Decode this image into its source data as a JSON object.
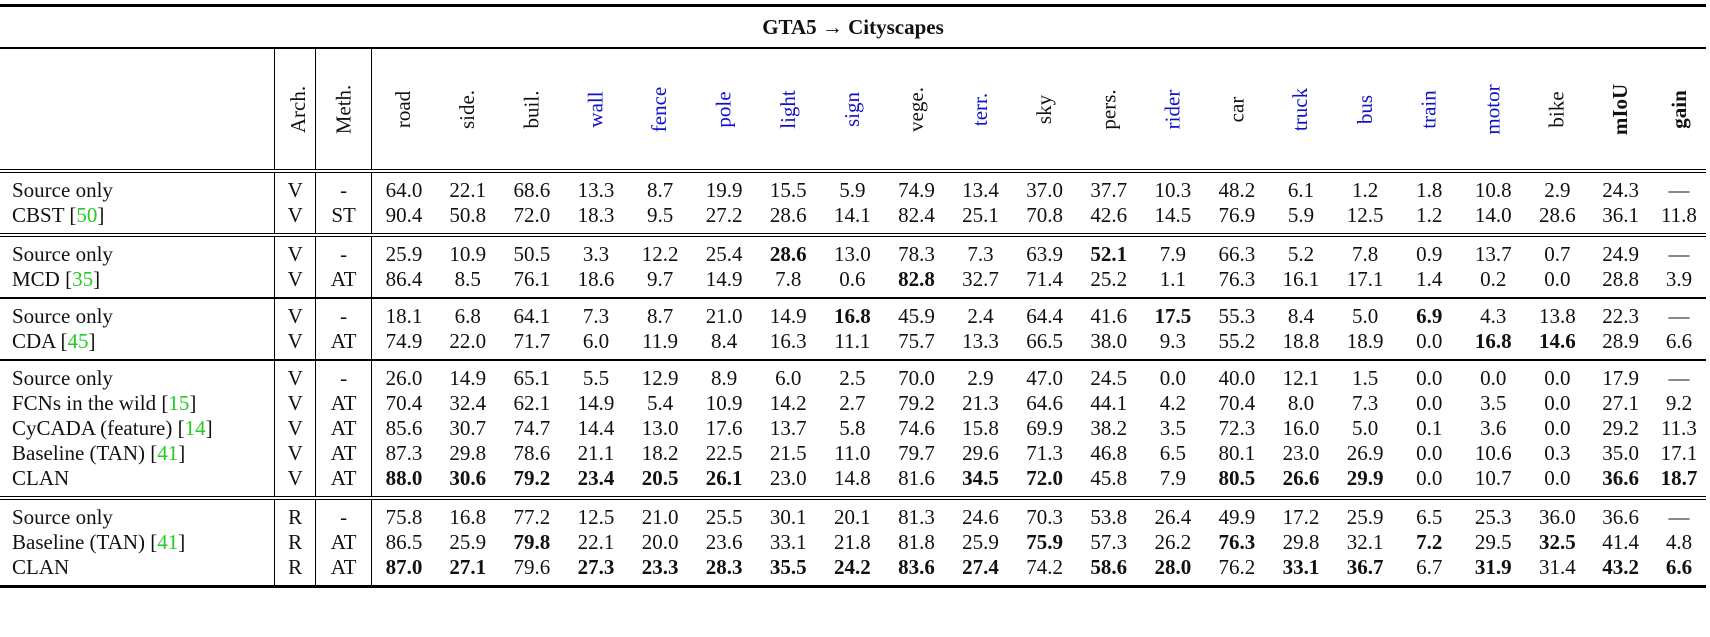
{
  "title": "GTA5 → Cityscapes",
  "columns": {
    "arch": "Arch.",
    "meth": "Meth.",
    "classes": [
      {
        "label": "road",
        "blue": false
      },
      {
        "label": "side.",
        "blue": false
      },
      {
        "label": "buil.",
        "blue": false
      },
      {
        "label": "wall",
        "blue": true
      },
      {
        "label": "fence",
        "blue": true
      },
      {
        "label": "pole",
        "blue": true
      },
      {
        "label": "light",
        "blue": true
      },
      {
        "label": "sign",
        "blue": true
      },
      {
        "label": "vege.",
        "blue": false
      },
      {
        "label": "terr.",
        "blue": true
      },
      {
        "label": "sky",
        "blue": false
      },
      {
        "label": "pers.",
        "blue": false
      },
      {
        "label": "rider",
        "blue": true
      },
      {
        "label": "car",
        "blue": false
      },
      {
        "label": "truck",
        "blue": true
      },
      {
        "label": "bus",
        "blue": true
      },
      {
        "label": "train",
        "blue": true
      },
      {
        "label": "motor",
        "blue": true
      },
      {
        "label": "bike",
        "blue": false
      }
    ],
    "miou": "mIoU",
    "gain": "gain"
  },
  "colors": {
    "blue_class": "#1010cc",
    "citation": "#22cc22"
  },
  "groups": [
    {
      "rows": [
        {
          "method": "Source only",
          "ref": "",
          "arch": "V",
          "meth": "-",
          "values": [
            "64.0",
            "22.1",
            "68.6",
            "13.3",
            "8.7",
            "19.9",
            "15.5",
            "5.9",
            "74.9",
            "13.4",
            "37.0",
            "37.7",
            "10.3",
            "48.2",
            "6.1",
            "1.2",
            "1.8",
            "10.8",
            "2.9",
            "24.3",
            "—"
          ],
          "bold": []
        },
        {
          "method": "CBST",
          "ref": "50",
          "arch": "V",
          "meth": "ST",
          "values": [
            "90.4",
            "50.8",
            "72.0",
            "18.3",
            "9.5",
            "27.2",
            "28.6",
            "14.1",
            "82.4",
            "25.1",
            "70.8",
            "42.6",
            "14.5",
            "76.9",
            "5.9",
            "12.5",
            "1.2",
            "14.0",
            "28.6",
            "36.1",
            "11.8"
          ],
          "bold": []
        }
      ]
    },
    {
      "rows": [
        {
          "method": "Source only",
          "ref": "",
          "arch": "V",
          "meth": "-",
          "values": [
            "25.9",
            "10.9",
            "50.5",
            "3.3",
            "12.2",
            "25.4",
            "28.6",
            "13.0",
            "78.3",
            "7.3",
            "63.9",
            "52.1",
            "7.9",
            "66.3",
            "5.2",
            "7.8",
            "0.9",
            "13.7",
            "0.7",
            "24.9",
            "—"
          ],
          "bold": [
            6,
            11
          ]
        },
        {
          "method": "MCD",
          "ref": "35",
          "arch": "V",
          "meth": "AT",
          "values": [
            "86.4",
            "8.5",
            "76.1",
            "18.6",
            "9.7",
            "14.9",
            "7.8",
            "0.6",
            "82.8",
            "32.7",
            "71.4",
            "25.2",
            "1.1",
            "76.3",
            "16.1",
            "17.1",
            "1.4",
            "0.2",
            "0.0",
            "28.8",
            "3.9"
          ],
          "bold": [
            8
          ]
        }
      ]
    },
    {
      "rows": [
        {
          "method": "Source only",
          "ref": "",
          "arch": "V",
          "meth": "-",
          "values": [
            "18.1",
            "6.8",
            "64.1",
            "7.3",
            "8.7",
            "21.0",
            "14.9",
            "16.8",
            "45.9",
            "2.4",
            "64.4",
            "41.6",
            "17.5",
            "55.3",
            "8.4",
            "5.0",
            "6.9",
            "4.3",
            "13.8",
            "22.3",
            "—"
          ],
          "bold": [
            7,
            12,
            16
          ]
        },
        {
          "method": "CDA",
          "ref": "45",
          "arch": "V",
          "meth": "AT",
          "values": [
            "74.9",
            "22.0",
            "71.7",
            "6.0",
            "11.9",
            "8.4",
            "16.3",
            "11.1",
            "75.7",
            "13.3",
            "66.5",
            "38.0",
            "9.3",
            "55.2",
            "18.8",
            "18.9",
            "0.0",
            "16.8",
            "14.6",
            "28.9",
            "6.6"
          ],
          "bold": [
            17,
            18
          ]
        }
      ]
    },
    {
      "rows": [
        {
          "method": "Source only",
          "ref": "",
          "arch": "V",
          "meth": "-",
          "values": [
            "26.0",
            "14.9",
            "65.1",
            "5.5",
            "12.9",
            "8.9",
            "6.0",
            "2.5",
            "70.0",
            "2.9",
            "47.0",
            "24.5",
            "0.0",
            "40.0",
            "12.1",
            "1.5",
            "0.0",
            "0.0",
            "0.0",
            "17.9",
            "—"
          ],
          "bold": []
        },
        {
          "method": "FCNs in the wild",
          "ref": "15",
          "arch": "V",
          "meth": "AT",
          "values": [
            "70.4",
            "32.4",
            "62.1",
            "14.9",
            "5.4",
            "10.9",
            "14.2",
            "2.7",
            "79.2",
            "21.3",
            "64.6",
            "44.1",
            "4.2",
            "70.4",
            "8.0",
            "7.3",
            "0.0",
            "3.5",
            "0.0",
            "27.1",
            "9.2"
          ],
          "bold": []
        },
        {
          "method": "CyCADA (feature)",
          "ref": "14",
          "arch": "V",
          "meth": "AT",
          "values": [
            "85.6",
            "30.7",
            "74.7",
            "14.4",
            "13.0",
            "17.6",
            "13.7",
            "5.8",
            "74.6",
            "15.8",
            "69.9",
            "38.2",
            "3.5",
            "72.3",
            "16.0",
            "5.0",
            "0.1",
            "3.6",
            "0.0",
            "29.2",
            "11.3"
          ],
          "bold": []
        },
        {
          "method": "Baseline (TAN)",
          "ref": "41",
          "arch": "V",
          "meth": "AT",
          "values": [
            "87.3",
            "29.8",
            "78.6",
            "21.1",
            "18.2",
            "22.5",
            "21.5",
            "11.0",
            "79.7",
            "29.6",
            "71.3",
            "46.8",
            "6.5",
            "80.1",
            "23.0",
            "26.9",
            "0.0",
            "10.6",
            "0.3",
            "35.0",
            "17.1"
          ],
          "bold": []
        },
        {
          "method": "CLAN",
          "ref": "",
          "arch": "V",
          "meth": "AT",
          "values": [
            "88.0",
            "30.6",
            "79.2",
            "23.4",
            "20.5",
            "26.1",
            "23.0",
            "14.8",
            "81.6",
            "34.5",
            "72.0",
            "45.8",
            "7.9",
            "80.5",
            "26.6",
            "29.9",
            "0.0",
            "10.7",
            "0.0",
            "36.6",
            "18.7"
          ],
          "bold": [
            0,
            1,
            2,
            3,
            4,
            5,
            9,
            10,
            13,
            14,
            15,
            19,
            20
          ]
        }
      ]
    },
    {
      "rows": [
        {
          "method": "Source only",
          "ref": "",
          "arch": "R",
          "meth": "-",
          "values": [
            "75.8",
            "16.8",
            "77.2",
            "12.5",
            "21.0",
            "25.5",
            "30.1",
            "20.1",
            "81.3",
            "24.6",
            "70.3",
            "53.8",
            "26.4",
            "49.9",
            "17.2",
            "25.9",
            "6.5",
            "25.3",
            "36.0",
            "36.6",
            "—"
          ],
          "bold": []
        },
        {
          "method": "Baseline (TAN)",
          "ref": "41",
          "arch": "R",
          "meth": "AT",
          "values": [
            "86.5",
            "25.9",
            "79.8",
            "22.1",
            "20.0",
            "23.6",
            "33.1",
            "21.8",
            "81.8",
            "25.9",
            "75.9",
            "57.3",
            "26.2",
            "76.3",
            "29.8",
            "32.1",
            "7.2",
            "29.5",
            "32.5",
            "41.4",
            "4.8"
          ],
          "bold": [
            2,
            10,
            13,
            16,
            18
          ]
        },
        {
          "method": "CLAN",
          "ref": "",
          "arch": "R",
          "meth": "AT",
          "values": [
            "87.0",
            "27.1",
            "79.6",
            "27.3",
            "23.3",
            "28.3",
            "35.5",
            "24.2",
            "83.6",
            "27.4",
            "74.2",
            "58.6",
            "28.0",
            "76.2",
            "33.1",
            "36.7",
            "6.7",
            "31.9",
            "31.4",
            "43.2",
            "6.6"
          ],
          "bold": [
            0,
            1,
            3,
            4,
            5,
            6,
            7,
            8,
            9,
            11,
            12,
            14,
            15,
            17,
            19,
            20
          ]
        }
      ]
    }
  ]
}
